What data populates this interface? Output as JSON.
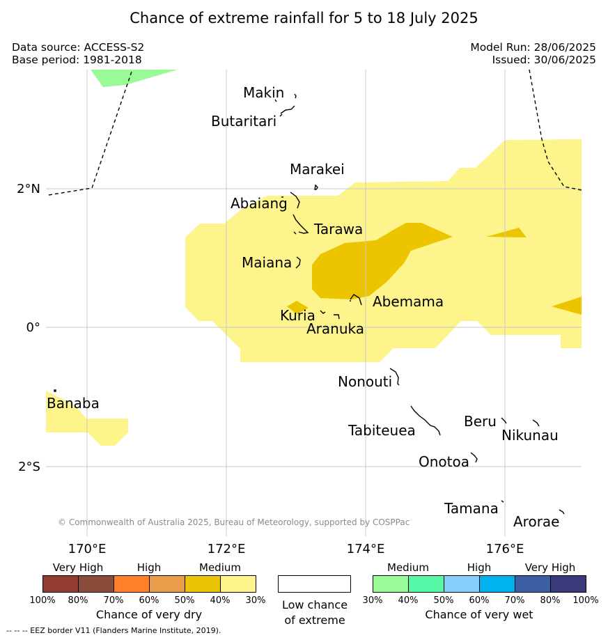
{
  "header": {
    "title": "Chance of extreme rainfall for 5 to 18 July 2025",
    "data_source": "Data source: ACCESS-S2",
    "base_period": "Base period: 1981-2018",
    "model_run": "Model Run: 28/06/2025",
    "issued": "Issued: 30/06/2025"
  },
  "map": {
    "copyright": "© Commonwealth of Australia 2025, Bureau of Meteorology, supported by COSPPac",
    "lon_labels": [
      "170°E",
      "172°E",
      "174°E",
      "176°E"
    ],
    "lat_labels": [
      "2°N",
      "0°",
      "2°S"
    ],
    "places": [
      "Makin",
      "Butaritari",
      "Marakei",
      "Abaiang",
      "Tarawa",
      "Maiana",
      "Abemama",
      "Kuria",
      "Aranuka",
      "Nonouti",
      "Banaba",
      "Tabiteuea",
      "Beru",
      "Nikunau",
      "Onotoa",
      "Tamana",
      "Arorae"
    ],
    "colors": {
      "dry_medium_light": "#fdf48b",
      "dry_medium_dark": "#ecc500",
      "wet_medium_light": "#98fb98"
    }
  },
  "legend": {
    "dry": {
      "categories": [
        "Very High",
        "High",
        "Medium"
      ],
      "ticks": [
        "100%",
        "80%",
        "70%",
        "60%",
        "50%",
        "40%",
        "30%"
      ],
      "colors": [
        "#923d30",
        "#8b4c3c",
        "#ff8026",
        "#ea9c4b",
        "#ebc505",
        "#fdf48b"
      ],
      "title": "Chance of very dry"
    },
    "low": {
      "title_line1": "Low chance",
      "title_line2": "of extreme"
    },
    "wet": {
      "categories": [
        "Medium",
        "High",
        "Very High"
      ],
      "ticks": [
        "30%",
        "40%",
        "50%",
        "60%",
        "70%",
        "80%",
        "100%"
      ],
      "colors": [
        "#98fb98",
        "#57f7a8",
        "#87cdfc",
        "#00b2ee",
        "#3b5fa2",
        "#3b3a7a"
      ],
      "title": "Chance of very wet"
    }
  },
  "footnote": "--  --  -- EEZ border V11 (Flanders Marine Institute, 2019)."
}
